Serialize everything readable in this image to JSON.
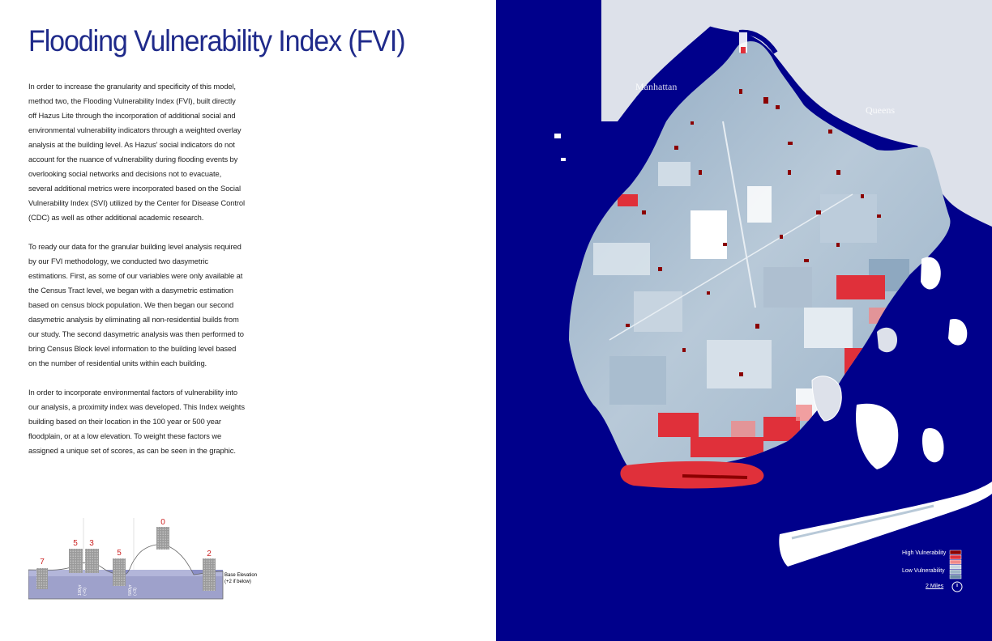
{
  "title": "Flooding Vulnerability Index (FVI)",
  "paragraphs": [
    "In order to increase the granularity and specificity of this model, method two, the Flooding Vulnerability Index (FVI), built directly off Hazus Lite through the incorporation of additional social and environmental vulnerability indicators through a weighted overlay analysis at the building level. As Hazus' social indicators do not account for the nuance of vulnerability during flooding events by overlooking social networks and decisions not to evacuate, several additional metrics were incorporated based on the Social Vulnerability Index (SVI) utilized by the Center for Disease Control (CDC) as well as other additional academic research.",
    "To ready our data for the granular building level analysis required by our FVI methodology, we conducted two dasymetric estimations. First, as some of our variables were only available at the Census Tract level, we began with a dasymetric estimation based on census block population. We then began our second dasymetric analysis by eliminating all non-residential builds from our study. The second dasymetric analysis was then performed to bring Census Block level information to the building level based on the number of residential units within each building.",
    "In order to incorporate environmental factors of vulnerability into our analysis, a proximity index was developed. This Index weights building based on their location in the 100 year or 500 year floodplain, or at a low elevation. To weight these factors we assigned a unique set of scores, as can be seen in the graphic."
  ],
  "diagram": {
    "scores": [
      "7",
      "5",
      "3",
      "5",
      "0",
      "2"
    ],
    "floodplain_label_1": "100yr",
    "floodplain_note_1": "(+5)",
    "floodplain_label_2": "500yr",
    "floodplain_note_2": "(+3)",
    "base_elevation_label": "Base Elevation",
    "base_elevation_note": "(+2 if below)"
  },
  "map": {
    "labels": {
      "manhattan": "Manhattan",
      "queens": "Queens"
    },
    "water_color": "#00008b",
    "land_other_color": "#dde1ea",
    "high_color": "#8b0000",
    "low_color": "#7a9bb8"
  },
  "legend": {
    "high": "High Vulnerability",
    "low": "Low Vulnerability",
    "scale": "2 Miles",
    "swatches": [
      "#8b0000",
      "#e0303a",
      "#f08a8a",
      "#c9d6e0",
      "#9fb6c8",
      "#6f8ea8"
    ]
  }
}
